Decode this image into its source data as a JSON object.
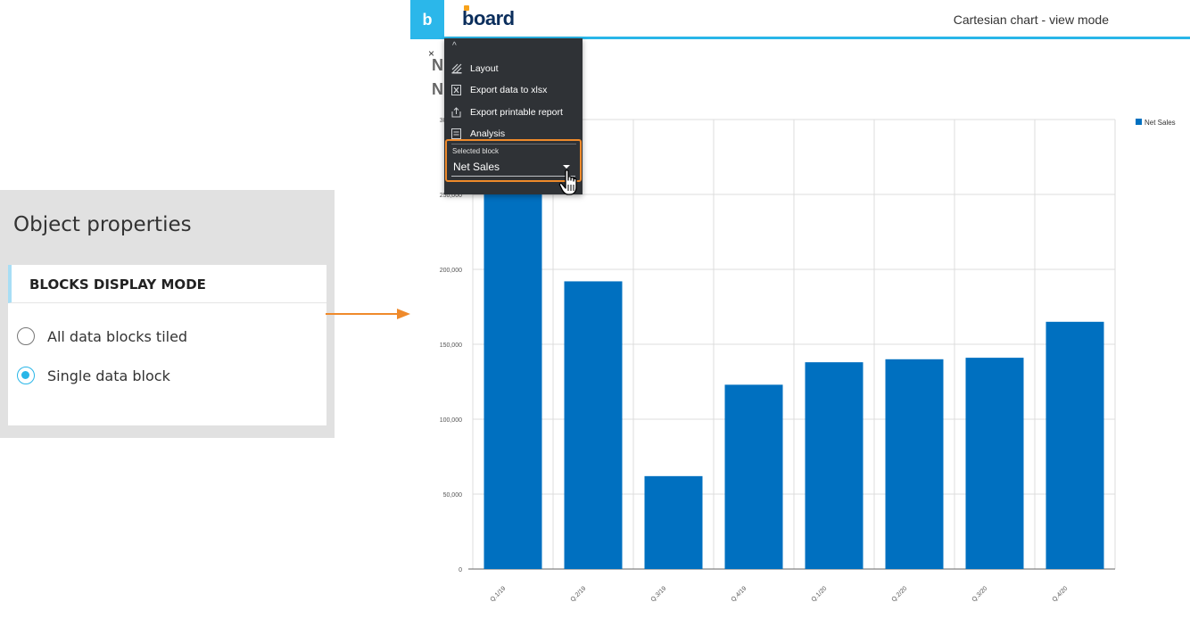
{
  "properties": {
    "title": "Object properties",
    "section_header": "BLOCKS DISPLAY MODE",
    "options": [
      {
        "label": "All data blocks tiled",
        "checked": false
      },
      {
        "label": "Single data block",
        "checked": true
      }
    ]
  },
  "app": {
    "logo_letter": "b",
    "brand": "board",
    "view_title": "Cartesian chart - view mode"
  },
  "chart_header": {
    "close": "×",
    "letters": [
      "N",
      "N"
    ]
  },
  "menu": {
    "caret": "^",
    "items": [
      {
        "label": "Layout",
        "icon": "layout-icon"
      },
      {
        "label": "Export data to xlsx",
        "icon": "excel-icon"
      },
      {
        "label": "Export printable report",
        "icon": "share-icon"
      },
      {
        "label": "Analysis",
        "icon": "analysis-icon"
      }
    ],
    "selected_block_label": "Selected block",
    "selected_block_value": "Net Sales"
  },
  "colors": {
    "accent": "#29b6e8",
    "bar": "#0070c0",
    "highlight": "#ef8a2b",
    "menu_bg": "#2f3236"
  },
  "chart_data": {
    "type": "bar",
    "categories": [
      "Q.1/19",
      "Q.2/19",
      "Q.3/19",
      "Q.4/19",
      "Q.1/20",
      "Q.2/20",
      "Q.3/20",
      "Q.4/20"
    ],
    "series": [
      {
        "name": "Net Sales",
        "values": [
          300000,
          192000,
          62000,
          123000,
          138000,
          140000,
          141000,
          165000
        ]
      }
    ],
    "ylim": [
      0,
      300000
    ],
    "yticks": [
      0,
      50000,
      100000,
      150000,
      200000,
      250000,
      300000
    ],
    "ytick_labels": [
      "0",
      "50,000",
      "100,000",
      "150,000",
      "200,000",
      "250,000",
      "300,000"
    ],
    "legend_position": "top-right",
    "grid": true
  }
}
